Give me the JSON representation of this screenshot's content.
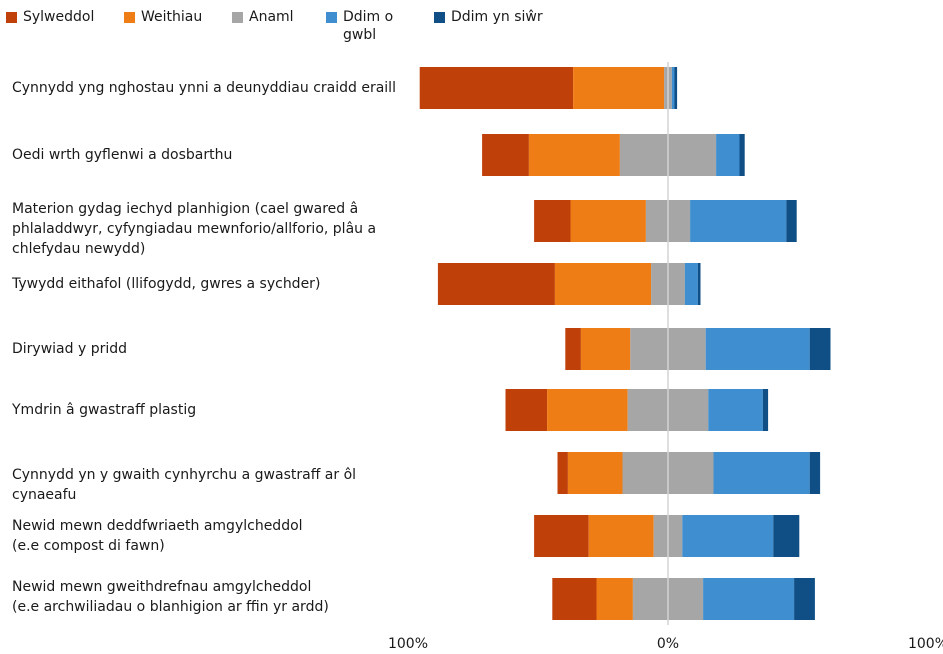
{
  "chart_data": {
    "type": "bar",
    "stacked": "diverging",
    "legend_position": "top-left",
    "grid": false,
    "xlim": [
      -100,
      100
    ],
    "x_ticks": [
      "100%",
      "0%",
      "100%"
    ],
    "categories": [
      "Cynnydd yng nghostau ynni a deunyddiau craidd eraill",
      "Oedi wrth gyflenwi a dosbarthu",
      "Materion gydag iechyd planhigion (cael gwared â\nphlaladdwyr, cyfyngiadau mewnforio/allforio, plâu a\nchlefydau newydd)",
      "Tywydd eithafol (llifogydd, gwres a sychder)",
      "Dirywiad y pridd",
      "Ymdrin â gwastraff plastig",
      "Cynnydd yn y gwaith cynhyrchu a gwastraff ar ôl\ncynaeafu",
      "Newid mewn deddfwriaeth amgylcheddol\n(e.e compost di fawn)",
      "Newid mewn gweithdrefnau amgylcheddol\n(e.e archwiliadau o blanhigion ar ffin yr ardd)"
    ],
    "series": [
      {
        "name": "Sylweddol",
        "color": "#c0400a",
        "side": "negative",
        "values": [
          59,
          18,
          14,
          45,
          6,
          16,
          4,
          21,
          17
        ]
      },
      {
        "name": "Weithiau",
        "color": "#ef7d16",
        "side": "negative",
        "values": [
          35,
          35,
          29,
          37,
          19,
          31,
          21,
          25,
          14
        ]
      },
      {
        "name": "Anaml",
        "color": "#a6a6a6",
        "side": "split",
        "values": [
          3,
          37,
          17,
          13,
          29,
          31,
          35,
          11,
          27
        ]
      },
      {
        "name": "Ddim o\ngwbl",
        "color": "#3f8ecf",
        "side": "positive",
        "values": [
          1,
          9,
          37,
          5,
          40,
          21,
          37,
          35,
          35
        ]
      },
      {
        "name": "Ddim yn siŵr",
        "color": "#0f4f86",
        "side": "positive",
        "values": [
          1,
          2,
          4,
          1,
          8,
          2,
          4,
          10,
          8
        ]
      }
    ]
  }
}
